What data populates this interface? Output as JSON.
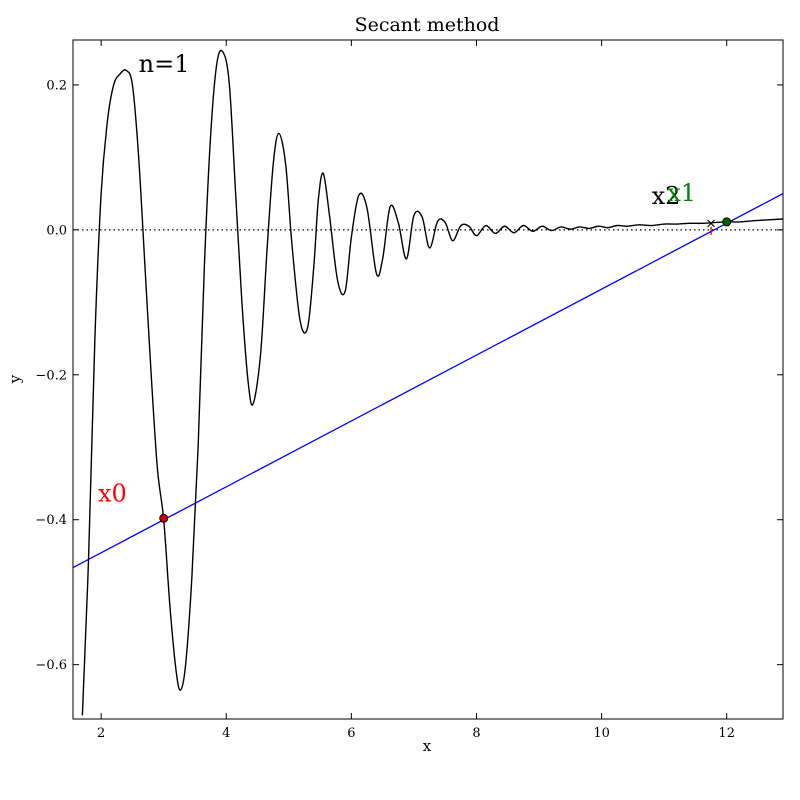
{
  "chart_data": {
    "type": "line",
    "title": "Secant method",
    "xlabel": "x",
    "ylabel": "y",
    "xlim": [
      1.55,
      12.9
    ],
    "ylim": [
      -0.675,
      0.262
    ],
    "xticks": [
      2,
      4,
      6,
      8,
      10,
      12
    ],
    "xtick_labels": [
      "2",
      "4",
      "6",
      "8",
      "10",
      "12"
    ],
    "yticks": [
      0.2,
      0.0,
      -0.2,
      -0.4,
      -0.6
    ],
    "ytick_labels": [
      "0.2",
      "0.0",
      "−0.2",
      "−0.4",
      "−0.6"
    ],
    "grid": false,
    "function_curve": {
      "color": "#000000",
      "x": [
        1.7,
        1.8,
        1.9,
        2.0,
        2.1,
        2.2,
        2.3,
        2.4,
        2.5,
        2.6,
        2.7,
        2.8,
        2.9,
        3.0,
        3.1,
        3.2,
        3.27,
        3.35,
        3.45,
        3.55,
        3.65,
        3.75,
        3.85,
        3.95,
        4.05,
        4.15,
        4.25,
        4.35,
        4.43,
        4.55,
        4.65,
        4.75,
        4.84,
        4.95,
        5.05,
        5.18,
        5.3,
        5.4,
        5.47,
        5.55,
        5.65,
        5.78,
        5.9,
        6.0,
        6.12,
        6.25,
        6.4,
        6.5,
        6.62,
        6.75,
        6.88,
        7.0,
        7.13,
        7.25,
        7.38,
        7.5,
        7.62,
        7.75,
        7.88,
        8.0,
        8.15,
        8.3,
        8.45,
        8.6,
        8.75,
        8.9,
        9.05,
        9.2,
        9.35,
        9.5,
        9.65,
        9.8,
        9.95,
        10.1,
        10.25,
        10.4,
        10.6,
        10.8,
        11.0,
        11.2,
        11.4,
        11.6,
        11.8,
        12.0,
        12.2,
        12.5,
        12.9
      ],
      "y": [
        -0.67,
        -0.45,
        -0.15,
        0.05,
        0.15,
        0.2,
        0.215,
        0.22,
        0.2,
        0.1,
        -0.05,
        -0.2,
        -0.33,
        -0.4,
        -0.52,
        -0.61,
        -0.635,
        -0.6,
        -0.48,
        -0.3,
        -0.05,
        0.13,
        0.23,
        0.245,
        0.2,
        0.05,
        -0.1,
        -0.21,
        -0.24,
        -0.17,
        -0.03,
        0.09,
        0.133,
        0.09,
        -0.02,
        -0.125,
        -0.135,
        -0.05,
        0.04,
        0.078,
        0.02,
        -0.07,
        -0.085,
        -0.01,
        0.048,
        0.03,
        -0.06,
        -0.04,
        0.032,
        0.01,
        -0.04,
        0.02,
        0.018,
        -0.025,
        0.012,
        0.01,
        -0.015,
        0.006,
        0.005,
        -0.008,
        0.006,
        -0.005,
        0.005,
        -0.004,
        0.006,
        -0.002,
        0.005,
        -0.001,
        0.004,
        0.001,
        0.004,
        0.002,
        0.005,
        0.003,
        0.006,
        0.005,
        0.007,
        0.006,
        0.008,
        0.008,
        0.009,
        0.009,
        0.01,
        0.011,
        0.011,
        0.013,
        0.015
      ]
    },
    "secant_line": {
      "color": "#0000ff",
      "points": [
        [
          1.55,
          -0.466
        ],
        [
          12.9,
          0.05
        ]
      ]
    },
    "zero_line": {
      "y": 0.0,
      "style": "dotted",
      "color": "#000000"
    },
    "markers": [
      {
        "x": 3.0,
        "y": -0.398,
        "color": "#cc0000",
        "symbol": "circle"
      },
      {
        "x": 12.0,
        "y": 0.011,
        "color": "#006400",
        "symbol": "circle"
      },
      {
        "x": 11.75,
        "y": 0.009,
        "color": "#000000",
        "symbol": "cross"
      },
      {
        "x": 11.75,
        "y": 0.0,
        "color": "#cc0000",
        "symbol": "vtick"
      }
    ],
    "annotations": [
      {
        "text": "n=1",
        "x": 2.6,
        "y": 0.218,
        "color": "#000000"
      },
      {
        "text": "x0",
        "x": 1.95,
        "y": -0.375,
        "color": "#ff0000"
      },
      {
        "text": "x2",
        "x": 10.8,
        "y": 0.036,
        "color": "#000000"
      },
      {
        "text": "x1",
        "x": 11.05,
        "y": 0.04,
        "color": "#008000"
      }
    ]
  }
}
